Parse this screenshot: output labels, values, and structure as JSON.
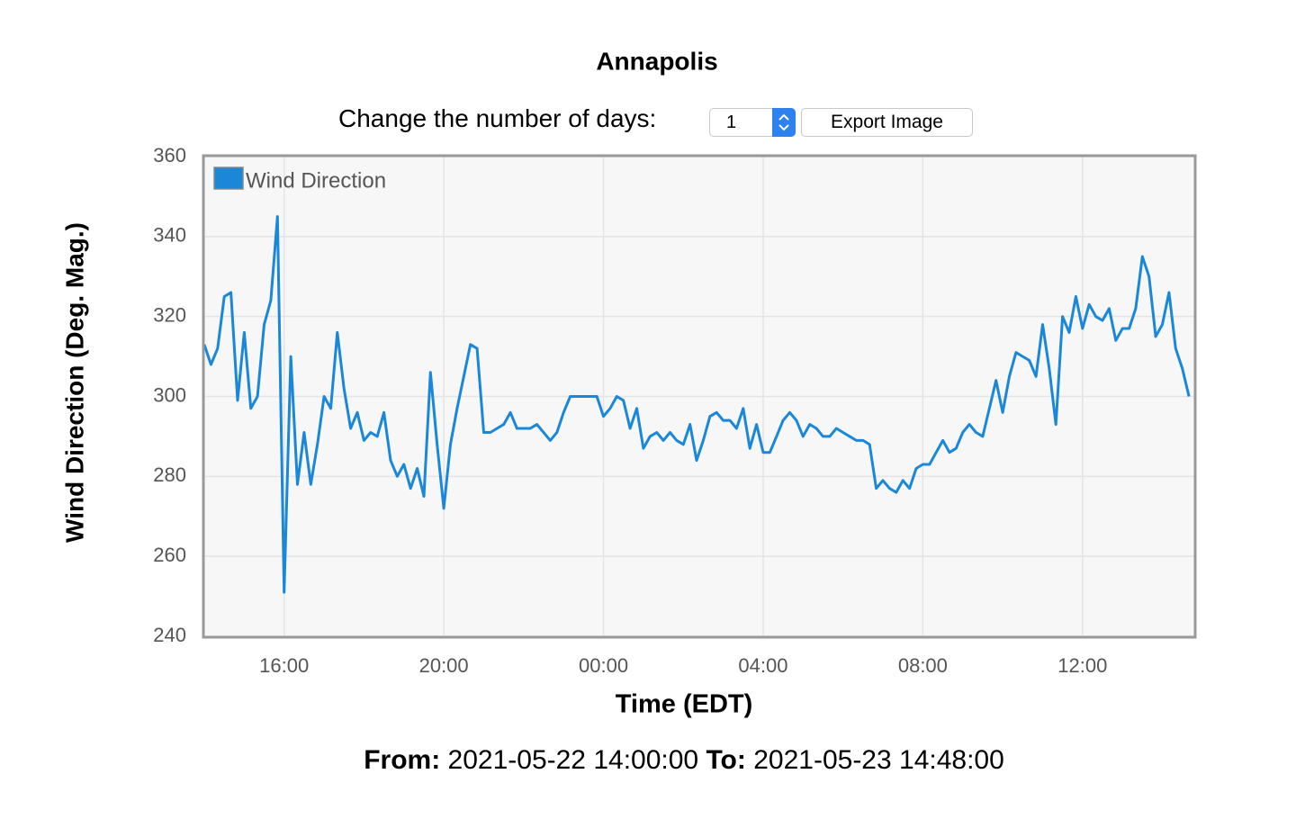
{
  "header": {
    "title": "Annapolis"
  },
  "controls": {
    "days_label": "Change the number of days:",
    "days_value": "1",
    "export_button": "Export Image"
  },
  "chart_data": {
    "type": "line",
    "x_label": "Time (EDT)",
    "y_label": "Wind Direction (Deg. Mag.)",
    "legend": "top-left",
    "grid": true,
    "xlim": [
      "2021-05-22 14:00",
      "2021-05-23 14:48"
    ],
    "xticks": [
      {
        "value": "2021-05-22 16:00",
        "label": "16:00"
      },
      {
        "value": "2021-05-22 20:00",
        "label": "20:00"
      },
      {
        "value": "2021-05-23 00:00",
        "label": "00:00"
      },
      {
        "value": "2021-05-23 04:00",
        "label": "04:00"
      },
      {
        "value": "2021-05-23 08:00",
        "label": "08:00"
      },
      {
        "value": "2021-05-23 12:00",
        "label": "12:00"
      }
    ],
    "ylim": [
      240,
      360
    ],
    "yticks": [
      240,
      260,
      280,
      300,
      320,
      340,
      360
    ],
    "x": [
      "2021-05-22 14:00",
      "2021-05-22 14:10",
      "2021-05-22 14:20",
      "2021-05-22 14:30",
      "2021-05-22 14:40",
      "2021-05-22 14:50",
      "2021-05-22 15:00",
      "2021-05-22 15:10",
      "2021-05-22 15:20",
      "2021-05-22 15:30",
      "2021-05-22 15:40",
      "2021-05-22 15:50",
      "2021-05-22 16:00",
      "2021-05-22 16:10",
      "2021-05-22 16:20",
      "2021-05-22 16:30",
      "2021-05-22 16:40",
      "2021-05-22 16:50",
      "2021-05-22 17:00",
      "2021-05-22 17:10",
      "2021-05-22 17:20",
      "2021-05-22 17:30",
      "2021-05-22 17:40",
      "2021-05-22 17:50",
      "2021-05-22 18:00",
      "2021-05-22 18:10",
      "2021-05-22 18:20",
      "2021-05-22 18:30",
      "2021-05-22 18:40",
      "2021-05-22 18:50",
      "2021-05-22 19:00",
      "2021-05-22 19:10",
      "2021-05-22 19:20",
      "2021-05-22 19:30",
      "2021-05-22 19:40",
      "2021-05-22 19:50",
      "2021-05-22 20:00",
      "2021-05-22 20:10",
      "2021-05-22 20:20",
      "2021-05-22 20:30",
      "2021-05-22 20:40",
      "2021-05-22 20:50",
      "2021-05-22 21:00",
      "2021-05-22 21:10",
      "2021-05-22 21:20",
      "2021-05-22 21:30",
      "2021-05-22 21:40",
      "2021-05-22 21:50",
      "2021-05-22 22:00",
      "2021-05-22 22:10",
      "2021-05-22 22:20",
      "2021-05-22 22:30",
      "2021-05-22 22:40",
      "2021-05-22 22:50",
      "2021-05-22 23:00",
      "2021-05-22 23:10",
      "2021-05-22 23:20",
      "2021-05-22 23:30",
      "2021-05-22 23:40",
      "2021-05-22 23:50",
      "2021-05-23 00:00",
      "2021-05-23 00:10",
      "2021-05-23 00:20",
      "2021-05-23 00:30",
      "2021-05-23 00:40",
      "2021-05-23 00:50",
      "2021-05-23 01:00",
      "2021-05-23 01:10",
      "2021-05-23 01:20",
      "2021-05-23 01:30",
      "2021-05-23 01:40",
      "2021-05-23 01:50",
      "2021-05-23 02:00",
      "2021-05-23 02:10",
      "2021-05-23 02:20",
      "2021-05-23 02:30",
      "2021-05-23 02:40",
      "2021-05-23 02:50",
      "2021-05-23 03:00",
      "2021-05-23 03:10",
      "2021-05-23 03:20",
      "2021-05-23 03:30",
      "2021-05-23 03:40",
      "2021-05-23 03:50",
      "2021-05-23 04:00",
      "2021-05-23 04:10",
      "2021-05-23 04:20",
      "2021-05-23 04:30",
      "2021-05-23 04:40",
      "2021-05-23 04:50",
      "2021-05-23 05:00",
      "2021-05-23 05:10",
      "2021-05-23 05:20",
      "2021-05-23 05:30",
      "2021-05-23 05:40",
      "2021-05-23 05:50",
      "2021-05-23 06:00",
      "2021-05-23 06:10",
      "2021-05-23 06:20",
      "2021-05-23 06:30",
      "2021-05-23 06:40",
      "2021-05-23 06:50",
      "2021-05-23 07:00",
      "2021-05-23 07:10",
      "2021-05-23 07:20",
      "2021-05-23 07:30",
      "2021-05-23 07:40",
      "2021-05-23 07:50",
      "2021-05-23 08:00",
      "2021-05-23 08:10",
      "2021-05-23 08:20",
      "2021-05-23 08:30",
      "2021-05-23 08:40",
      "2021-05-23 08:50",
      "2021-05-23 09:00",
      "2021-05-23 09:10",
      "2021-05-23 09:20",
      "2021-05-23 09:30",
      "2021-05-23 09:40",
      "2021-05-23 09:50",
      "2021-05-23 10:00",
      "2021-05-23 10:10",
      "2021-05-23 10:20",
      "2021-05-23 10:30",
      "2021-05-23 10:40",
      "2021-05-23 10:50",
      "2021-05-23 11:00",
      "2021-05-23 11:10",
      "2021-05-23 11:20",
      "2021-05-23 11:30",
      "2021-05-23 11:40",
      "2021-05-23 11:50",
      "2021-05-23 12:00",
      "2021-05-23 12:10",
      "2021-05-23 12:20",
      "2021-05-23 12:30",
      "2021-05-23 12:40",
      "2021-05-23 12:50",
      "2021-05-23 13:00",
      "2021-05-23 13:10",
      "2021-05-23 13:20",
      "2021-05-23 13:30",
      "2021-05-23 13:40",
      "2021-05-23 13:50",
      "2021-05-23 14:00",
      "2021-05-23 14:10",
      "2021-05-23 14:20",
      "2021-05-23 14:30",
      "2021-05-23 14:40"
    ],
    "series": [
      {
        "name": "Wind Direction",
        "color": "#1a87d9",
        "values": [
          313,
          308,
          312,
          325,
          326,
          299,
          316,
          297,
          300,
          318,
          324,
          345,
          251,
          310,
          278,
          291,
          278,
          288,
          300,
          297,
          316,
          302,
          292,
          296,
          289,
          291,
          290,
          296,
          284,
          280,
          283,
          277,
          282,
          275,
          306,
          288,
          272,
          288,
          297,
          305,
          313,
          312,
          291,
          291,
          292,
          293,
          296,
          292,
          292,
          292,
          293,
          291,
          289,
          291,
          296,
          300,
          300,
          300,
          300,
          300,
          295,
          297,
          300,
          299,
          292,
          297,
          287,
          290,
          291,
          289,
          291,
          289,
          288,
          293,
          284,
          289,
          295,
          296,
          294,
          294,
          292,
          297,
          287,
          293,
          286,
          286,
          290,
          294,
          296,
          294,
          290,
          293,
          292,
          290,
          290,
          292,
          291,
          290,
          289,
          289,
          288,
          277,
          279,
          277,
          276,
          279,
          277,
          282,
          283,
          283,
          286,
          289,
          286,
          287,
          291,
          293,
          291,
          290,
          297,
          304,
          296,
          305,
          311,
          310,
          309,
          305,
          318,
          307,
          293,
          320,
          316,
          325,
          317,
          323,
          320,
          319,
          322,
          314,
          317,
          317,
          322,
          335,
          330,
          315,
          318,
          326,
          312,
          307,
          300
        ]
      }
    ]
  },
  "footer": {
    "from_label": "From:",
    "from": "2021-05-22 14:00:00",
    "to_label": "To:",
    "to": "2021-05-23 14:48:00"
  }
}
